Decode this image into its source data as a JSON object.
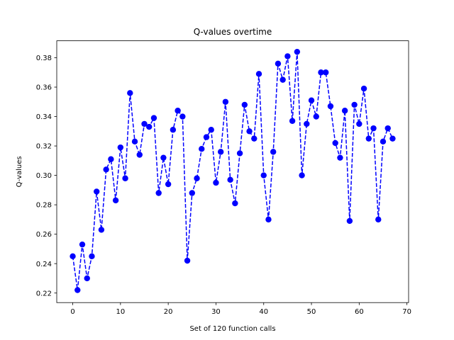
{
  "chart_data": {
    "type": "line",
    "title": "Q-values overtime",
    "xlabel": "Set of 120 function calls",
    "ylabel": "Q-values",
    "xlim": [
      -3.35,
      70.35
    ],
    "ylim": [
      0.2135,
      0.3915
    ],
    "xticks": [
      0,
      10,
      20,
      30,
      40,
      50,
      60,
      70
    ],
    "yticks": [
      0.22,
      0.24,
      0.26,
      0.28,
      0.3,
      0.32,
      0.34,
      0.36,
      0.38
    ],
    "ytick_labels": [
      "0.22",
      "0.24",
      "0.26",
      "0.28",
      "0.30",
      "0.32",
      "0.34",
      "0.36",
      "0.38"
    ],
    "grid": false,
    "line_style": "dashed",
    "marker": "circle",
    "color": "#0000ff",
    "series": [
      {
        "x": [
          0,
          1,
          2,
          3,
          4,
          5,
          6,
          7,
          8,
          9,
          10,
          11,
          12,
          13,
          14,
          15,
          16,
          17,
          18,
          19,
          20,
          21,
          22,
          23,
          24,
          25,
          26,
          27,
          28,
          29,
          30,
          31,
          32,
          33,
          34,
          35,
          36,
          37,
          38,
          39,
          40,
          41,
          42,
          43,
          44,
          45,
          46,
          47,
          48,
          49,
          50,
          51,
          52,
          53,
          54,
          55,
          56,
          57,
          58,
          59,
          60,
          61,
          62,
          63,
          64,
          65,
          66,
          67
        ],
        "values": [
          0.245,
          0.222,
          0.253,
          0.23,
          0.245,
          0.289,
          0.263,
          0.304,
          0.311,
          0.283,
          0.319,
          0.298,
          0.356,
          0.323,
          0.314,
          0.335,
          0.333,
          0.339,
          0.288,
          0.312,
          0.294,
          0.331,
          0.344,
          0.34,
          0.242,
          0.288,
          0.298,
          0.318,
          0.326,
          0.331,
          0.295,
          0.316,
          0.35,
          0.297,
          0.281,
          0.315,
          0.348,
          0.33,
          0.325,
          0.369,
          0.3,
          0.27,
          0.316,
          0.376,
          0.365,
          0.381,
          0.337,
          0.384,
          0.3,
          0.335,
          0.351,
          0.34,
          0.37,
          0.37,
          0.347,
          0.322,
          0.312,
          0.344,
          0.269,
          0.348,
          0.335,
          0.359,
          0.325,
          0.332,
          0.27,
          0.323,
          0.332,
          0.325
        ]
      }
    ]
  }
}
